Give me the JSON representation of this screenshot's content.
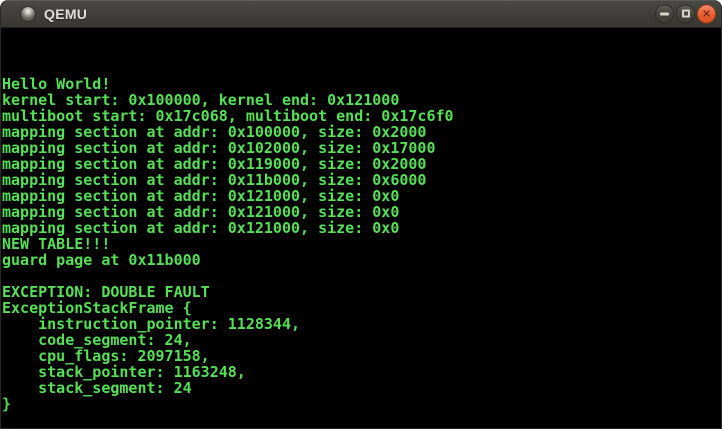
{
  "window": {
    "title": "QEMU"
  },
  "icons": {
    "window_icon": "qemu-disc-icon",
    "minimize": "minimize-icon",
    "maximize": "maximize-icon",
    "close": "close-icon",
    "close_glyph": "✕"
  },
  "colors": {
    "terminal_green": "#55e055",
    "terminal_bg": "#000000",
    "titlebar_bg": "#403e3a",
    "titlebar_text": "#e2dfda",
    "close_button": "#e65e30"
  },
  "console": {
    "lines": [
      "",
      "",
      "",
      "Hello World!",
      "kernel start: 0x100000, kernel end: 0x121000",
      "multiboot start: 0x17c068, multiboot end: 0x17c6f0",
      "mapping section at addr: 0x100000, size: 0x2000",
      "mapping section at addr: 0x102000, size: 0x17000",
      "mapping section at addr: 0x119000, size: 0x2000",
      "mapping section at addr: 0x11b000, size: 0x6000",
      "mapping section at addr: 0x121000, size: 0x0",
      "mapping section at addr: 0x121000, size: 0x0",
      "mapping section at addr: 0x121000, size: 0x0",
      "NEW TABLE!!!",
      "guard page at 0x11b000",
      "",
      "EXCEPTION: DOUBLE FAULT",
      "ExceptionStackFrame {",
      "    instruction_pointer: 1128344,",
      "    code_segment: 24,",
      "    cpu_flags: 2097158,",
      "    stack_pointer: 1163248,",
      "    stack_segment: 24",
      "}"
    ]
  }
}
